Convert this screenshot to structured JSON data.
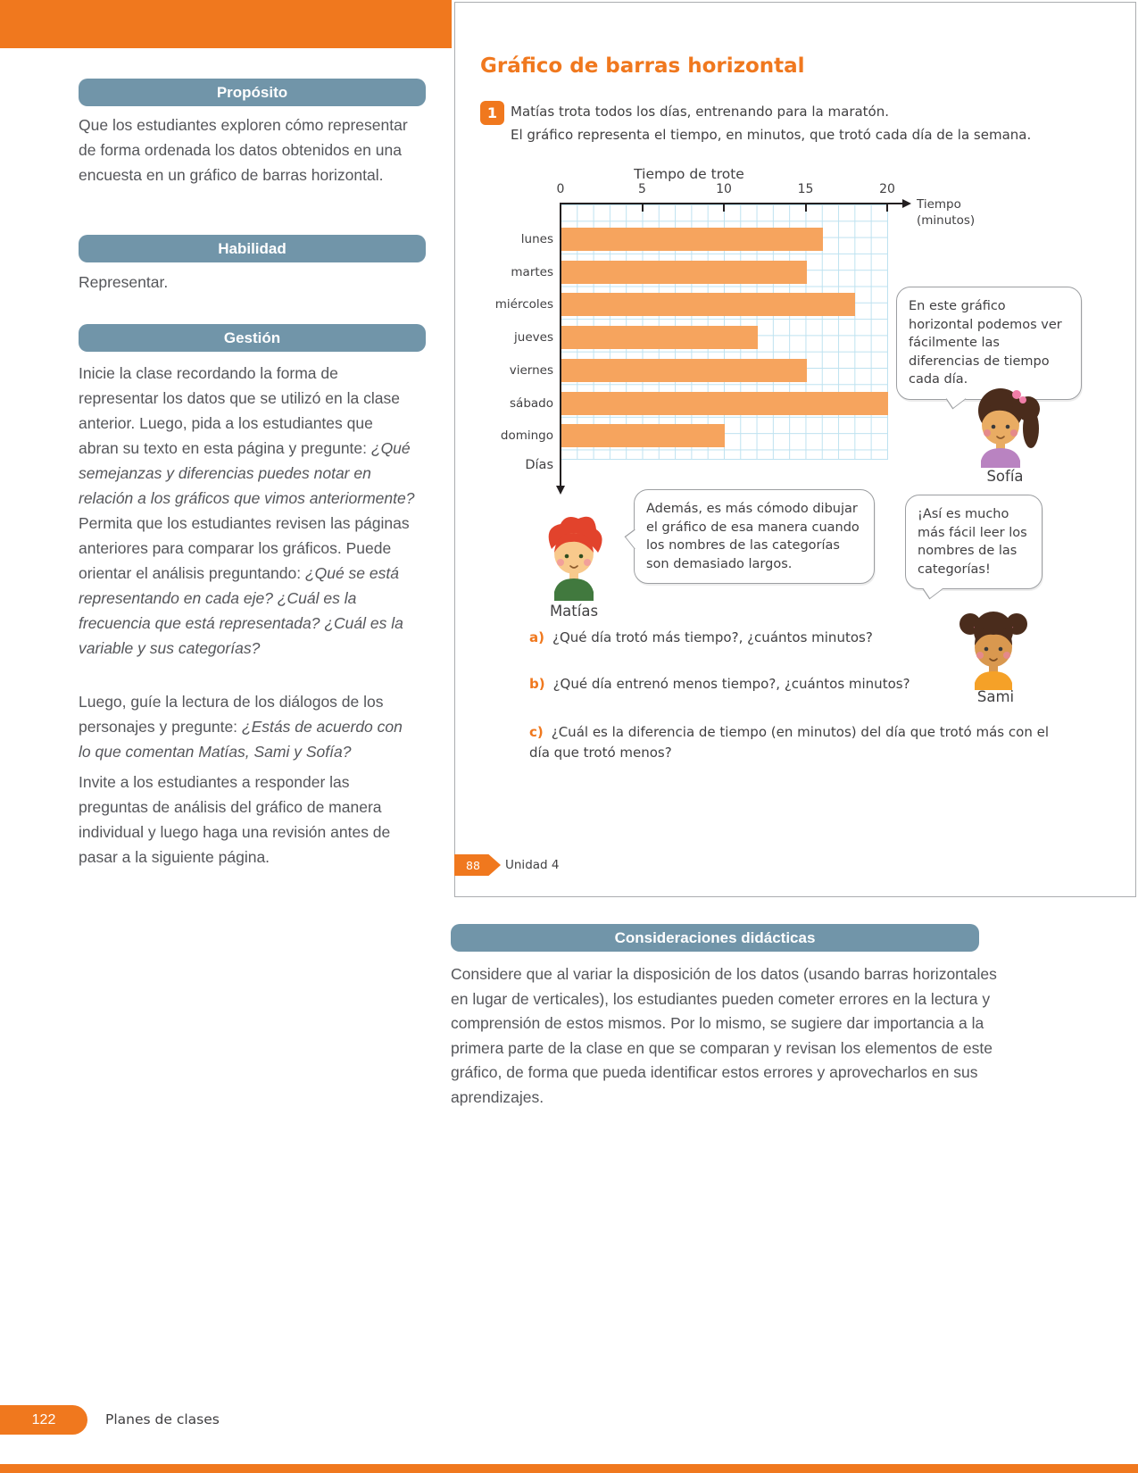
{
  "palette": {
    "accent_orange": "#F0781E",
    "header_blue": "#7195A9",
    "bar_orange": "#F6A45E",
    "grid_blue": "#BEE2F0",
    "text_dark": "#414042"
  },
  "sidebar": {
    "proposito": {
      "title": "Propósito",
      "body": "Que los estudiantes exploren cómo representar de forma ordenada los datos obtenidos en una encuesta en un gráfico de barras horizontal."
    },
    "habilidad": {
      "title": "Habilidad",
      "body": "Representar."
    },
    "gestion": {
      "title": "Gestión",
      "p1_r1": "Inicie la clase recordando la forma de representar los datos que se utilizó en la clase anterior. Luego, pida a los estudiantes que abran su texto en esta página y pregunte: ",
      "p1_i1": "¿Qué semejanzas y diferencias puedes notar en relación a los gráficos que vimos anteriormente? ",
      "p1_r2": "Permita que los estudiantes revisen las páginas anteriores para comparar los gráficos. Puede orientar el análisis preguntando: ",
      "p1_i2": "¿Qué se está representando en cada eje? ¿Cuál es la frecuencia que está representada? ¿Cuál es la variable y sus categorías?",
      "p2_r1": "Luego, guíe la lectura de los diálogos de los personajes y pregunte: ",
      "p2_i1": "¿Estás de acuerdo con lo que comentan Matías, Sami y Sofía?",
      "p3": "Invite a los estudiantes a responder las preguntas de análisis del gráfico de manera individual y luego haga una revisión antes de pasar a la siguiente página."
    }
  },
  "student_page": {
    "title": "Gráfico de barras horizontal",
    "item_number": "1",
    "statement_line1": "Matías trota todos los días, entrenando para la maratón.",
    "statement_line2": "El gráfico representa el tiempo, en minutos, que trotó cada día de la semana.",
    "speech": {
      "sofia": {
        "name": "Sofía",
        "text": "En este gráfico horizontal podemos ver fácilmente las diferencias de tiempo cada día."
      },
      "matias": {
        "name": "Matías",
        "text": "Además, es más cómodo dibujar el gráfico de esa manera cuando los nombres de las categorías son demasiado largos."
      },
      "sami": {
        "name": "Sami",
        "text": "¡Así es mucho más fácil leer los nombres de las categorías!"
      }
    },
    "questions": [
      {
        "label": "a)",
        "text": "¿Qué día trotó más tiempo?, ¿cuántos minutos?"
      },
      {
        "label": "b)",
        "text": "¿Qué día entrenó menos tiempo?, ¿cuántos minutos?"
      },
      {
        "label": "c)",
        "text": "¿Cuál es la diferencia de tiempo (en minutos) del día que trotó más con el día que trotó menos?"
      }
    ],
    "page_badge": "88",
    "unit_label": "Unidad 4"
  },
  "chart_data": {
    "type": "bar",
    "orientation": "horizontal",
    "title": "Tiempo de trote",
    "categories": [
      "lunes",
      "martes",
      "miércoles",
      "jueves",
      "viernes",
      "sábado",
      "domingo"
    ],
    "values": [
      16,
      15,
      18,
      12,
      15,
      20,
      10
    ],
    "xlabel": "Tiempo (minutos)",
    "ylabel": "Días",
    "xlim": [
      0,
      20
    ],
    "xticks": [
      0,
      5,
      10,
      15,
      20
    ],
    "grid": true,
    "legend": "none"
  },
  "consideraciones": {
    "title": "Consideraciones didácticas",
    "body": "Considere que al variar la disposición de los datos (usando barras horizontales en lugar de verticales), los estudiantes pueden cometer errores en la lectura y comprensión de estos mismos. Por lo mismo, se sugiere dar importancia a la primera parte de la clase en que se comparan y revisan los elementos de este gráfico, de forma que pueda identificar estos errores y aprovecharlos en sus aprendizajes."
  },
  "footer": {
    "page_number": "122",
    "label": "Planes de clases"
  }
}
